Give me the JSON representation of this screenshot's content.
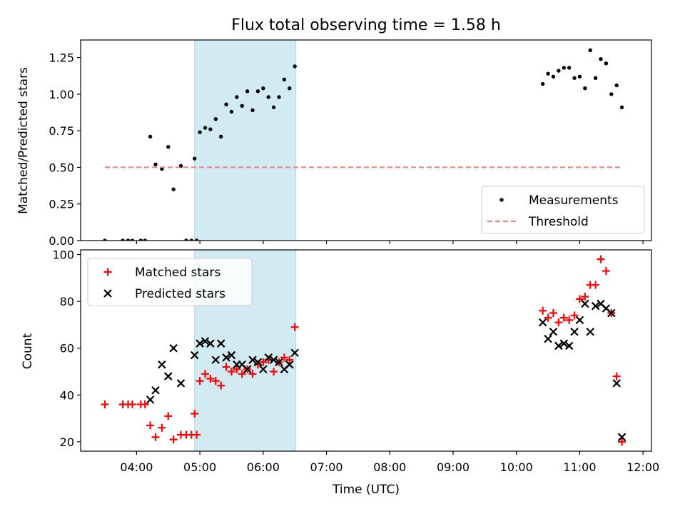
{
  "chart_data": [
    {
      "type": "scatter",
      "title": "Flux total observing time = 1.58 h",
      "ylabel": "Matched/Predicted stars",
      "xlabel": "",
      "xlim": [
        "03:07",
        "12:08"
      ],
      "ylim": [
        0,
        1.37
      ],
      "yticks": [
        0.0,
        0.25,
        0.5,
        0.75,
        1.0,
        1.25
      ],
      "ytick_labels": [
        "0.00",
        "0.25",
        "0.50",
        "0.75",
        "1.00",
        "1.25"
      ],
      "shaded_span": [
        "04:55",
        "06:31"
      ],
      "shaded_color": "#add8e6",
      "legend_position": "lower right",
      "series": [
        {
          "name": "Measurements",
          "marker": "dot",
          "color": "#000000",
          "points": [
            [
              "03:30",
              0.0
            ],
            [
              "03:47",
              0.0
            ],
            [
              "03:52",
              0.0
            ],
            [
              "03:56",
              0.0
            ],
            [
              "04:04",
              0.0
            ],
            [
              "04:08",
              0.0
            ],
            [
              "04:13",
              0.71
            ],
            [
              "04:18",
              0.52
            ],
            [
              "04:24",
              0.49
            ],
            [
              "04:30",
              0.64
            ],
            [
              "04:35",
              0.35
            ],
            [
              "04:42",
              0.51
            ],
            [
              "04:47",
              0.0
            ],
            [
              "04:52",
              0.0
            ],
            [
              "04:57",
              0.0
            ],
            [
              "04:55",
              0.56
            ],
            [
              "05:00",
              0.74
            ],
            [
              "05:05",
              0.77
            ],
            [
              "05:10",
              0.76
            ],
            [
              "05:15",
              0.83
            ],
            [
              "05:20",
              0.71
            ],
            [
              "05:25",
              0.93
            ],
            [
              "05:30",
              0.88
            ],
            [
              "05:35",
              0.98
            ],
            [
              "05:40",
              0.92
            ],
            [
              "05:45",
              1.02
            ],
            [
              "05:50",
              0.89
            ],
            [
              "05:55",
              1.02
            ],
            [
              "06:00",
              1.04
            ],
            [
              "06:05",
              0.98
            ],
            [
              "06:10",
              0.91
            ],
            [
              "06:15",
              0.98
            ],
            [
              "06:20",
              1.1
            ],
            [
              "06:25",
              1.04
            ],
            [
              "06:30",
              1.19
            ],
            [
              "10:25",
              1.07
            ],
            [
              "10:30",
              1.14
            ],
            [
              "10:35",
              1.12
            ],
            [
              "10:40",
              1.16
            ],
            [
              "10:45",
              1.18
            ],
            [
              "10:50",
              1.18
            ],
            [
              "10:55",
              1.11
            ],
            [
              "11:00",
              1.12
            ],
            [
              "11:05",
              1.04
            ],
            [
              "11:10",
              1.3
            ],
            [
              "11:15",
              1.11
            ],
            [
              "11:20",
              1.24
            ],
            [
              "11:25",
              1.21
            ],
            [
              "11:30",
              1.0
            ],
            [
              "11:35",
              1.06
            ],
            [
              "11:40",
              0.91
            ]
          ]
        },
        {
          "name": "Threshold",
          "marker": "dashed-line",
          "color": "#f08080",
          "points": [
            [
              "03:30",
              0.5
            ],
            [
              "11:40",
              0.5
            ]
          ]
        }
      ]
    },
    {
      "type": "scatter",
      "title": "",
      "ylabel": "Count",
      "xlabel": "Time (UTC)",
      "xlim": [
        "03:07",
        "12:08"
      ],
      "ylim": [
        16,
        102
      ],
      "yticks": [
        20,
        40,
        60,
        80,
        100
      ],
      "ytick_labels": [
        "20",
        "40",
        "60",
        "80",
        "100"
      ],
      "xticks": [
        "04:00",
        "05:00",
        "06:00",
        "07:00",
        "08:00",
        "09:00",
        "10:00",
        "11:00",
        "12:00"
      ],
      "xtick_labels": [
        "04:00",
        "05:00",
        "06:00",
        "07:00",
        "08:00",
        "09:00",
        "10:00",
        "11:00",
        "12:00"
      ],
      "shaded_span": [
        "04:55",
        "06:31"
      ],
      "shaded_color": "#add8e6",
      "legend_position": "upper left",
      "series": [
        {
          "name": "Matched stars",
          "marker": "plus",
          "color": "#ff0000",
          "points": [
            [
              "03:30",
              36
            ],
            [
              "03:47",
              36
            ],
            [
              "03:52",
              36
            ],
            [
              "03:56",
              36
            ],
            [
              "04:04",
              36
            ],
            [
              "04:08",
              36
            ],
            [
              "04:13",
              27
            ],
            [
              "04:18",
              22
            ],
            [
              "04:24",
              26
            ],
            [
              "04:30",
              31
            ],
            [
              "04:35",
              21
            ],
            [
              "04:42",
              23
            ],
            [
              "04:47",
              23
            ],
            [
              "04:52",
              23
            ],
            [
              "04:57",
              23
            ],
            [
              "04:55",
              32
            ],
            [
              "05:00",
              46
            ],
            [
              "05:05",
              49
            ],
            [
              "05:10",
              47
            ],
            [
              "05:15",
              46
            ],
            [
              "05:20",
              44
            ],
            [
              "05:25",
              52
            ],
            [
              "05:30",
              50
            ],
            [
              "05:35",
              51
            ],
            [
              "05:40",
              49
            ],
            [
              "05:45",
              51
            ],
            [
              "05:50",
              49
            ],
            [
              "05:55",
              53
            ],
            [
              "06:00",
              54
            ],
            [
              "06:05",
              55
            ],
            [
              "06:10",
              50
            ],
            [
              "06:15",
              54
            ],
            [
              "06:20",
              56
            ],
            [
              "06:25",
              55
            ],
            [
              "06:30",
              69
            ],
            [
              "10:25",
              76
            ],
            [
              "10:30",
              73
            ],
            [
              "10:35",
              75
            ],
            [
              "10:40",
              71
            ],
            [
              "10:45",
              73
            ],
            [
              "10:50",
              72
            ],
            [
              "10:55",
              74
            ],
            [
              "11:00",
              81
            ],
            [
              "11:05",
              82
            ],
            [
              "11:10",
              87
            ],
            [
              "11:15",
              87
            ],
            [
              "11:20",
              98
            ],
            [
              "11:25",
              93
            ],
            [
              "11:30",
              75
            ],
            [
              "11:35",
              48
            ],
            [
              "11:40",
              20
            ]
          ]
        },
        {
          "name": "Predicted stars",
          "marker": "x",
          "color": "#000000",
          "points": [
            [
              "04:13",
              38
            ],
            [
              "04:18",
              42
            ],
            [
              "04:24",
              53
            ],
            [
              "04:30",
              48
            ],
            [
              "04:35",
              60
            ],
            [
              "04:42",
              45
            ],
            [
              "04:55",
              57
            ],
            [
              "05:00",
              62
            ],
            [
              "05:05",
              63
            ],
            [
              "05:10",
              62
            ],
            [
              "05:15",
              55
            ],
            [
              "05:20",
              62
            ],
            [
              "05:25",
              56
            ],
            [
              "05:30",
              57
            ],
            [
              "05:35",
              53
            ],
            [
              "05:40",
              53
            ],
            [
              "05:45",
              51
            ],
            [
              "05:50",
              55
            ],
            [
              "05:55",
              54
            ],
            [
              "06:00",
              51
            ],
            [
              "06:05",
              56
            ],
            [
              "06:10",
              55
            ],
            [
              "06:15",
              54
            ],
            [
              "06:20",
              51
            ],
            [
              "06:25",
              53
            ],
            [
              "06:30",
              58
            ],
            [
              "10:25",
              71
            ],
            [
              "10:30",
              64
            ],
            [
              "10:35",
              67
            ],
            [
              "10:40",
              61
            ],
            [
              "10:45",
              62
            ],
            [
              "10:50",
              61
            ],
            [
              "10:55",
              67
            ],
            [
              "11:00",
              72
            ],
            [
              "11:05",
              79
            ],
            [
              "11:10",
              67
            ],
            [
              "11:15",
              78
            ],
            [
              "11:20",
              79
            ],
            [
              "11:25",
              77
            ],
            [
              "11:30",
              75
            ],
            [
              "11:35",
              45
            ],
            [
              "11:40",
              22
            ]
          ]
        }
      ]
    }
  ]
}
